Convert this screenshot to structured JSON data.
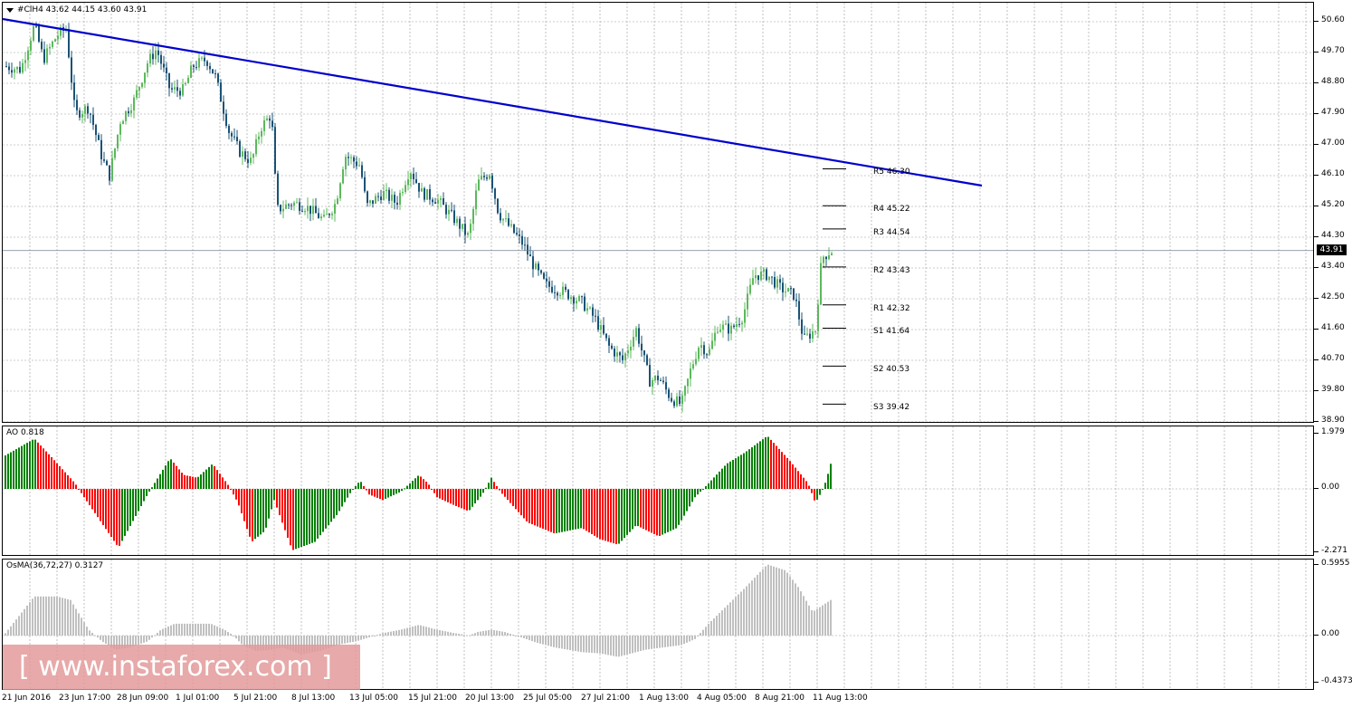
{
  "symbol_header": {
    "text": "#ClH4  43.62 44.15 43.60 43.91"
  },
  "current_price": "43.91",
  "main_axis_labels": [
    "50.60",
    "49.70",
    "48.80",
    "47.90",
    "47.00",
    "46.10",
    "45.20",
    "44.30",
    "43.40",
    "42.50",
    "41.60",
    "40.70",
    "39.80",
    "38.90"
  ],
  "pivots": [
    {
      "label": "R5 46.30",
      "value": 46.3
    },
    {
      "label": "R4 45.22",
      "value": 45.22
    },
    {
      "label": "R3 44.54",
      "value": 44.54
    },
    {
      "label": "R2 43.43",
      "value": 43.43
    },
    {
      "label": "R1 42.32",
      "value": 42.32
    },
    {
      "label": "S1 41.64",
      "value": 41.64
    },
    {
      "label": "S2 40.53",
      "value": 40.53
    },
    {
      "label": "S3 39.42",
      "value": 39.42
    }
  ],
  "ao": {
    "title": "AO 0.818",
    "axis_labels": [
      "1.979",
      "0.00",
      "-2.271"
    ]
  },
  "osma": {
    "title": "OsMA(36,72,27) 0.3127",
    "axis_labels": [
      "0.5955",
      "0.00",
      "-0.4373"
    ]
  },
  "time_labels": [
    "21 Jun 2016",
    "23 Jun 17:00",
    "28 Jun 09:00",
    "1 Jul 01:00",
    "5 Jul 21:00",
    "8 Jul 13:00",
    "13 Jul 05:00",
    "15 Jul 21:00",
    "20 Jul 13:00",
    "25 Jul 05:00",
    "27 Jul 21:00",
    "1 Aug 13:00",
    "4 Aug 05:00",
    "8 Aug 21:00",
    "11 Aug 13:00"
  ],
  "watermark": "[ www.instaforex.com ]",
  "colors": {
    "bull": "#5cb85c",
    "bear": "#1a5276",
    "trendline": "#0000cc",
    "ao_up": "#008000",
    "ao_down": "#ff0000",
    "osma": "#c0c0c0"
  }
}
